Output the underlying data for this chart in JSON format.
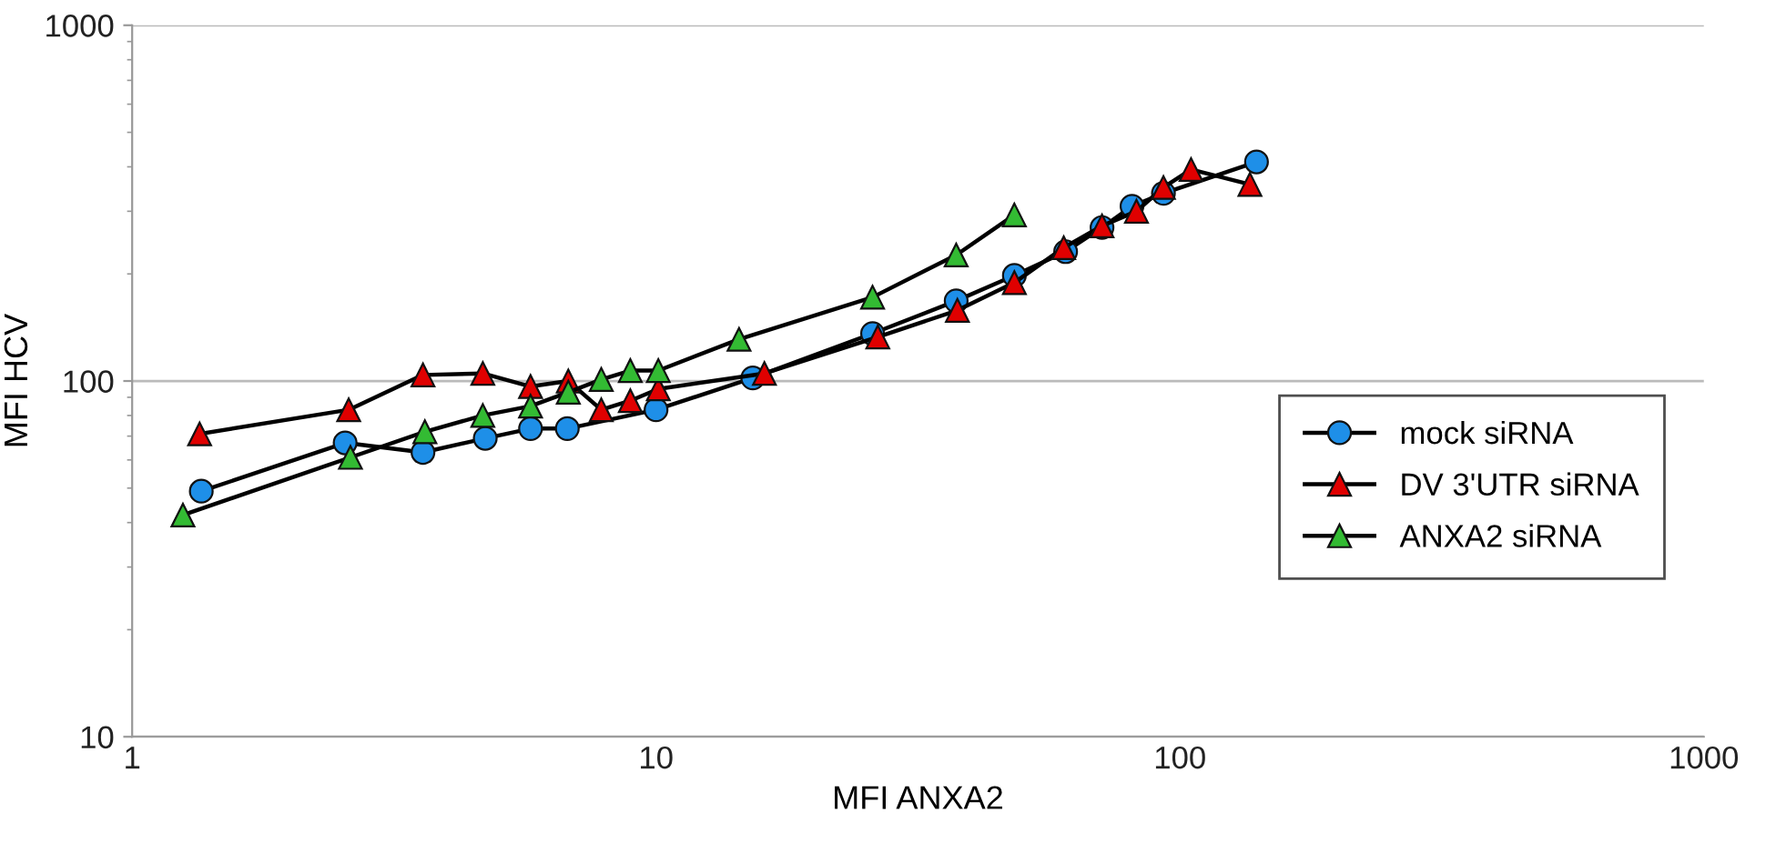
{
  "chart_data": {
    "type": "line",
    "xlabel": "MFI ANXA2",
    "ylabel": "MFI HCV",
    "log": "xy",
    "xlim": [
      1,
      1000
    ],
    "xticks": [
      1,
      10,
      100,
      1000
    ],
    "ylim": [
      10,
      1000
    ],
    "yticks": [
      10,
      100,
      1000
    ],
    "grid": "y",
    "legend": "bottom right",
    "series": [
      {
        "name": "mock siRNA",
        "color": "#1e8fe8",
        "marker": "circle",
        "x": [
          1.355,
          2.55,
          3.59,
          4.72,
          5.76,
          6.77,
          10,
          15.3,
          25.9,
          37.4,
          48.3,
          60.5,
          71,
          81,
          93,
          140
        ],
        "values": [
          49,
          67,
          63,
          69,
          73.5,
          73.5,
          83,
          102,
          136,
          168,
          198,
          231,
          270,
          310,
          337,
          413
        ]
      },
      {
        "name": "DV 3'UTR siRNA",
        "color": "#e00000",
        "marker": "triangle",
        "x": [
          1.345,
          2.59,
          3.59,
          4.67,
          5.76,
          6.8,
          7.86,
          8.93,
          10.1,
          16.1,
          26.5,
          37.6,
          48.3,
          60,
          71,
          82.6,
          93,
          105,
          136
        ],
        "values": [
          71,
          83,
          104,
          105,
          96.5,
          100,
          83,
          88,
          95,
          105,
          133,
          158,
          189,
          237,
          273,
          300,
          350,
          393,
          357
        ]
      },
      {
        "name": "ANXA2 siRNA",
        "color": "#33bb33",
        "marker": "triangle",
        "x": [
          1.25,
          2.61,
          3.62,
          4.67,
          5.76,
          6.8,
          7.86,
          8.93,
          10.1,
          14.4,
          25.9,
          37.4,
          48.3
        ],
        "values": [
          42,
          61,
          72,
          80,
          85,
          93,
          101,
          107,
          107,
          131,
          172,
          226,
          293
        ]
      }
    ]
  }
}
